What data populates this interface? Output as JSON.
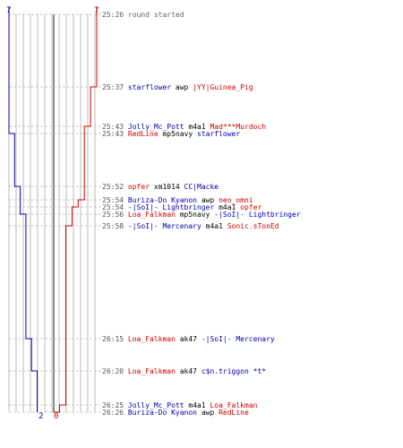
{
  "colors": {
    "blue": "#0000aa",
    "red": "#cc0000",
    "grid": "#bbbbbb",
    "dash": "#c8c8c8",
    "center": "#666666",
    "gray": "#666666"
  },
  "score": {
    "blue_start": "7",
    "red_start": "7",
    "blue_end": "2",
    "red_end": "0"
  },
  "timeline": [
    {
      "time": "25:26",
      "message": "round started",
      "y": 16
    },
    {
      "time": "25:37",
      "killer": "starflower",
      "killer_team": "blue",
      "weapon": "awp",
      "victim": "|YY|Guinea_Pig",
      "victim_team": "red"
    },
    {
      "time": "25:43",
      "killer": "Jolly_Mc_Pott",
      "killer_team": "blue",
      "weapon": "m4a1",
      "victim": "Mad***Murdoch",
      "victim_team": "red"
    },
    {
      "time": "25:43",
      "killer": "RedLine",
      "killer_team": "red",
      "weapon": "mp5navy",
      "victim": "starflower",
      "victim_team": "blue"
    },
    {
      "time": "25:52",
      "killer": "opfer",
      "killer_team": "red",
      "weapon": "xm1014",
      "victim": "CC|Macke",
      "victim_team": "blue"
    },
    {
      "time": "25:54",
      "killer": "Buriza-Do Kyanon",
      "killer_team": "blue",
      "weapon": "awp",
      "victim": "neo_omni",
      "victim_team": "red"
    },
    {
      "time": "25:54",
      "killer": "-|SoI|- Lightbringer",
      "killer_team": "blue",
      "weapon": "m4a1",
      "victim": "opfer",
      "victim_team": "red"
    },
    {
      "time": "25:56",
      "killer": "Loa_Falkman",
      "killer_team": "red",
      "weapon": "mp5navy",
      "victim": "-|SoI|- Lightbringer",
      "victim_team": "blue"
    },
    {
      "time": "25:58",
      "killer": "-|SoI|- Mercenary",
      "killer_team": "blue",
      "weapon": "m4a1",
      "victim": "Sonic.sTonEd",
      "victim_team": "red"
    },
    {
      "time": "26:15",
      "killer": "Loa_Falkman",
      "killer_team": "red",
      "weapon": "ak47",
      "victim": "-|SoI|- Mercenary",
      "victim_team": "blue"
    },
    {
      "time": "26:20",
      "killer": "Loa_Falkman",
      "killer_team": "red",
      "weapon": "ak47",
      "victim": "c$n.triggon *t*",
      "victim_team": "blue"
    },
    {
      "time": "26:25",
      "killer": "Jolly_Mc_Pott",
      "killer_team": "blue",
      "weapon": "m4a1",
      "victim": "Loa_Falkman",
      "victim_team": "red"
    },
    {
      "time": "26:26",
      "killer": "Buriza-Do Kyanon",
      "killer_team": "blue",
      "weapon": "awp",
      "victim": "RedLine",
      "victim_team": "red"
    }
  ],
  "alive_counts": {
    "blue": [
      7,
      7,
      7,
      6,
      5,
      5,
      5,
      4,
      4,
      3,
      2,
      2,
      2
    ],
    "red": [
      7,
      6,
      5,
      5,
      5,
      4,
      3,
      3,
      2,
      2,
      2,
      1,
      0
    ]
  }
}
